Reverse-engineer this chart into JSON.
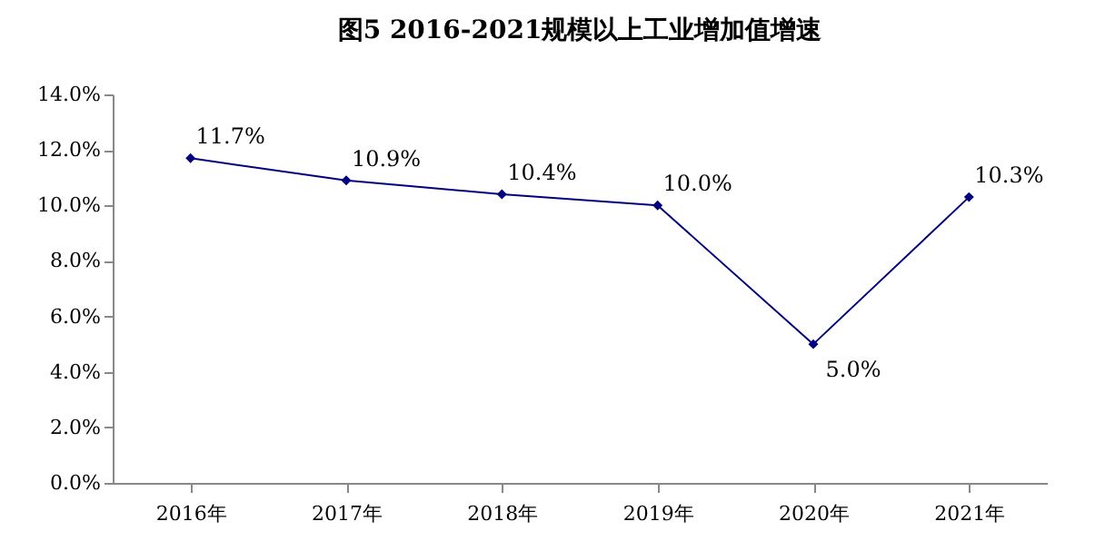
{
  "chart_data": {
    "type": "line",
    "title": "图5 2016-2021规模以上工业增加值增速",
    "categories": [
      "2016年",
      "2017年",
      "2018年",
      "2019年",
      "2020年",
      "2021年"
    ],
    "series": [
      {
        "color": "#000080",
        "values": [
          11.7,
          10.9,
          10.4,
          10.0,
          5.0,
          10.3
        ],
        "value_labels": [
          "11.7%",
          "10.9%",
          "10.4%",
          "10.0%",
          "5.0%",
          "10.3%"
        ]
      }
    ],
    "ylim": [
      0,
      14
    ],
    "yticks": [
      {
        "value": 0,
        "label": "0.0%"
      },
      {
        "value": 2,
        "label": "2.0%"
      },
      {
        "value": 4,
        "label": "4.0%"
      },
      {
        "value": 6,
        "label": "6.0%"
      },
      {
        "value": 8,
        "label": "8.0%"
      },
      {
        "value": 10,
        "label": "10.0%"
      },
      {
        "value": 12,
        "label": "12.0%"
      },
      {
        "value": 14,
        "label": "14.0%"
      }
    ],
    "grid": false,
    "marker": "diamond",
    "line_style": "solid"
  }
}
